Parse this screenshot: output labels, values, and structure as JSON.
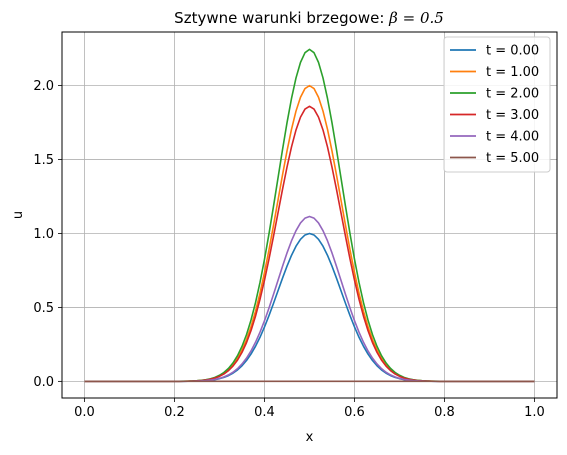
{
  "chart_data": {
    "type": "line",
    "title": "Sztywne warunki brzegowe: ",
    "title_math": "β = 0.5",
    "xlabel": "x",
    "ylabel": "u",
    "xlim": [
      -0.05,
      1.05
    ],
    "ylim": [
      -0.1125,
      2.3625
    ],
    "x_ticks": [
      "0.0",
      "0.2",
      "0.4",
      "0.6",
      "0.8",
      "1.0"
    ],
    "x_tick_values": [
      0.0,
      0.2,
      0.4,
      0.6,
      0.8,
      1.0
    ],
    "y_ticks": [
      "0.0",
      "0.5",
      "1.0",
      "1.5",
      "2.0"
    ],
    "y_tick_values": [
      0.0,
      0.5,
      1.0,
      1.5,
      2.0
    ],
    "grid": true,
    "legend_position": "top-right",
    "x_range": [
      0.0,
      1.0
    ],
    "center": 0.5,
    "series": [
      {
        "name": "t = 0.00",
        "color": "#1f77b4",
        "peak": 1.0,
        "width": 0.1
      },
      {
        "name": "t = 1.00",
        "color": "#ff7f0e",
        "peak": 2.0,
        "width": 0.1
      },
      {
        "name": "t = 2.00",
        "color": "#2ca02c",
        "peak": 2.245,
        "width": 0.1
      },
      {
        "name": "t = 3.00",
        "color": "#d62728",
        "peak": 1.86,
        "width": 0.1
      },
      {
        "name": "t = 4.00",
        "color": "#9467bd",
        "peak": 1.115,
        "width": 0.1
      },
      {
        "name": "t = 5.00",
        "color": "#8c564b",
        "peak": 0.0,
        "width": 0.1
      }
    ]
  }
}
